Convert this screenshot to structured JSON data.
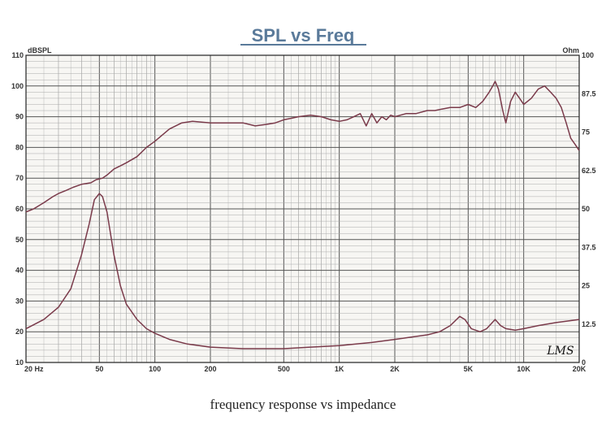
{
  "chart_data": {
    "type": "line",
    "title": "SPL vs Freq",
    "caption": "frequency response vs impedance",
    "watermark": "LMS",
    "ylabel_left": "dBSPL",
    "ylabel_right": "Ohm",
    "xscale": "log",
    "xlim": [
      20,
      20000
    ],
    "ylim_left": [
      10,
      110
    ],
    "ylim_right": [
      0,
      100
    ],
    "grid": true,
    "y_ticks_left": [
      10,
      20,
      30,
      40,
      50,
      60,
      70,
      80,
      90,
      100,
      110
    ],
    "y_ticks_right": [
      "0",
      "12.5",
      "25",
      "37.5",
      "50",
      "62.5",
      "75",
      "87.5",
      "100"
    ],
    "x_ticks": [
      {
        "value": 20,
        "label": "20  Hz"
      },
      {
        "value": 50,
        "label": "50"
      },
      {
        "value": 100,
        "label": "100"
      },
      {
        "value": 200,
        "label": "200"
      },
      {
        "value": 500,
        "label": "500"
      },
      {
        "value": 1000,
        "label": "1K"
      },
      {
        "value": 2000,
        "label": "2K"
      },
      {
        "value": 5000,
        "label": "5K"
      },
      {
        "value": 10000,
        "label": "10K"
      },
      {
        "value": 20000,
        "label": "20K"
      }
    ],
    "series": [
      {
        "name": "SPL",
        "axis": "left",
        "color": "#7a3a4a",
        "x": [
          20,
          22,
          25,
          28,
          30,
          33,
          36,
          40,
          45,
          48,
          52,
          55,
          60,
          65,
          70,
          80,
          90,
          100,
          120,
          140,
          160,
          200,
          250,
          300,
          350,
          400,
          450,
          500,
          550,
          600,
          700,
          800,
          900,
          1000,
          1100,
          1200,
          1300,
          1400,
          1500,
          1600,
          1700,
          1800,
          1900,
          2000,
          2300,
          2600,
          3000,
          3300,
          3600,
          4000,
          4500,
          5000,
          5500,
          6000,
          6500,
          6800,
          7000,
          7300,
          7700,
          8000,
          8500,
          9000,
          9500,
          10000,
          11000,
          12000,
          13000,
          14000,
          15000,
          16000,
          17000,
          18000,
          19000,
          20000
        ],
        "values": [
          59,
          60,
          62,
          64,
          65,
          66,
          67,
          68,
          68.5,
          69.5,
          70,
          71,
          73,
          74,
          75,
          77,
          80,
          82,
          86,
          88,
          88.5,
          88,
          88,
          88,
          87,
          87.5,
          88,
          89,
          89.5,
          90,
          90.5,
          90,
          89,
          88.5,
          89,
          90,
          91,
          87,
          91,
          88,
          90,
          89,
          90.5,
          90,
          91,
          91,
          92,
          92,
          92.5,
          93,
          93,
          94,
          93,
          95,
          98,
          100,
          101.5,
          99,
          92,
          88,
          95,
          98,
          96,
          94,
          96,
          99,
          100,
          98,
          96,
          93,
          88,
          83,
          81,
          79
        ]
      },
      {
        "name": "Impedance",
        "axis": "right",
        "color": "#7a3a4a",
        "x": [
          20,
          25,
          30,
          35,
          40,
          44,
          47,
          50,
          52,
          55,
          60,
          65,
          70,
          80,
          90,
          100,
          120,
          150,
          200,
          300,
          500,
          700,
          1000,
          1500,
          2000,
          3000,
          3500,
          4000,
          4500,
          4800,
          5200,
          5800,
          6300,
          7000,
          7500,
          8000,
          9000,
          10000,
          12000,
          15000,
          20000
        ],
        "values": [
          11,
          14,
          18,
          24,
          35,
          45,
          53,
          55,
          54,
          49,
          35,
          25,
          19,
          14,
          11,
          9.5,
          7.5,
          6,
          5,
          4.5,
          4.5,
          5,
          5.5,
          6.5,
          7.5,
          9,
          10,
          12,
          15,
          14,
          11,
          10,
          11,
          14,
          12,
          11,
          10.5,
          11,
          12,
          13,
          14
        ]
      }
    ]
  }
}
